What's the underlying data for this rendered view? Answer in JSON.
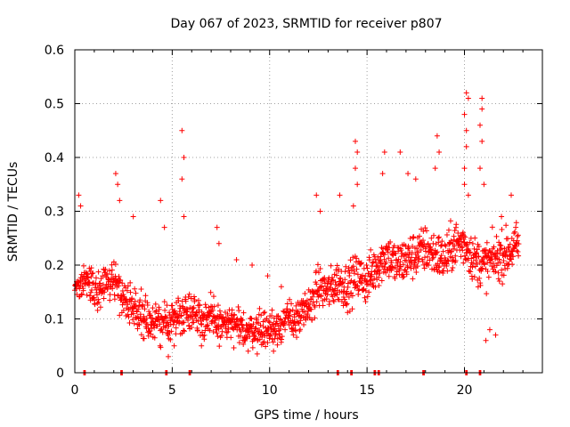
{
  "chart_data": {
    "type": "scatter",
    "title": "Day 067 of 2023, SRMTID for receiver p807",
    "xlabel": "GPS time / hours",
    "ylabel": "SRMTID / TECUs",
    "xlim": [
      0,
      24
    ],
    "ylim": [
      0,
      0.6
    ],
    "xticks": [
      0,
      5,
      10,
      15,
      20
    ],
    "yticks": [
      0,
      0.1,
      0.2,
      0.3,
      0.4,
      0.5,
      0.6
    ],
    "xtick_labels": [
      "0",
      "5",
      "10",
      "15",
      "20"
    ],
    "ytick_labels": [
      "0",
      "0.1",
      "0.2",
      "0.3",
      "0.4",
      "0.5",
      "0.6"
    ],
    "grid": true,
    "marker": "plus",
    "color": "#ff0000",
    "series": [
      {
        "name": "SRMTID",
        "trend": [
          [
            0.0,
            0.16
          ],
          [
            0.5,
            0.17
          ],
          [
            1.0,
            0.15
          ],
          [
            1.5,
            0.16
          ],
          [
            2.0,
            0.18
          ],
          [
            2.5,
            0.14
          ],
          [
            3.0,
            0.12
          ],
          [
            3.5,
            0.11
          ],
          [
            4.0,
            0.09
          ],
          [
            4.5,
            0.09
          ],
          [
            5.0,
            0.1
          ],
          [
            5.5,
            0.11
          ],
          [
            6.0,
            0.12
          ],
          [
            6.5,
            0.1
          ],
          [
            7.0,
            0.1
          ],
          [
            7.5,
            0.09
          ],
          [
            8.0,
            0.09
          ],
          [
            8.5,
            0.08
          ],
          [
            9.0,
            0.08
          ],
          [
            9.5,
            0.08
          ],
          [
            10.0,
            0.08
          ],
          [
            10.5,
            0.09
          ],
          [
            11.0,
            0.1
          ],
          [
            11.5,
            0.1
          ],
          [
            12.0,
            0.12
          ],
          [
            12.5,
            0.16
          ],
          [
            13.0,
            0.15
          ],
          [
            13.5,
            0.17
          ],
          [
            14.0,
            0.16
          ],
          [
            14.5,
            0.18
          ],
          [
            15.0,
            0.17
          ],
          [
            15.5,
            0.2
          ],
          [
            16.0,
            0.22
          ],
          [
            16.5,
            0.2
          ],
          [
            17.0,
            0.21
          ],
          [
            17.5,
            0.22
          ],
          [
            18.0,
            0.23
          ],
          [
            18.5,
            0.22
          ],
          [
            19.0,
            0.21
          ],
          [
            19.5,
            0.24
          ],
          [
            20.0,
            0.24
          ],
          [
            20.5,
            0.21
          ],
          [
            21.0,
            0.2
          ],
          [
            21.5,
            0.21
          ],
          [
            22.0,
            0.22
          ],
          [
            22.5,
            0.23
          ],
          [
            22.8,
            0.24
          ]
        ],
        "spread": [
          [
            0.0,
            0.05
          ],
          [
            3.0,
            0.06
          ],
          [
            6.0,
            0.06
          ],
          [
            9.0,
            0.05
          ],
          [
            12.0,
            0.06
          ],
          [
            15.0,
            0.07
          ],
          [
            18.0,
            0.07
          ],
          [
            21.0,
            0.07
          ],
          [
            22.8,
            0.07
          ]
        ],
        "outliers": [
          [
            0.2,
            0.33
          ],
          [
            0.3,
            0.31
          ],
          [
            2.1,
            0.37
          ],
          [
            2.2,
            0.35
          ],
          [
            2.3,
            0.32
          ],
          [
            3.0,
            0.29
          ],
          [
            4.4,
            0.32
          ],
          [
            4.6,
            0.27
          ],
          [
            5.5,
            0.45
          ],
          [
            5.6,
            0.4
          ],
          [
            5.5,
            0.36
          ],
          [
            5.6,
            0.29
          ],
          [
            7.3,
            0.27
          ],
          [
            7.4,
            0.24
          ],
          [
            8.3,
            0.21
          ],
          [
            9.1,
            0.2
          ],
          [
            9.9,
            0.18
          ],
          [
            10.6,
            0.16
          ],
          [
            12.4,
            0.33
          ],
          [
            12.6,
            0.3
          ],
          [
            13.6,
            0.33
          ],
          [
            14.4,
            0.43
          ],
          [
            14.5,
            0.41
          ],
          [
            14.4,
            0.38
          ],
          [
            14.5,
            0.35
          ],
          [
            14.3,
            0.31
          ],
          [
            15.9,
            0.41
          ],
          [
            15.8,
            0.37
          ],
          [
            16.7,
            0.41
          ],
          [
            17.1,
            0.37
          ],
          [
            17.5,
            0.36
          ],
          [
            18.6,
            0.44
          ],
          [
            18.7,
            0.41
          ],
          [
            18.5,
            0.38
          ],
          [
            20.1,
            0.52
          ],
          [
            20.2,
            0.51
          ],
          [
            20.0,
            0.48
          ],
          [
            20.1,
            0.45
          ],
          [
            20.1,
            0.42
          ],
          [
            20.0,
            0.38
          ],
          [
            20.0,
            0.35
          ],
          [
            20.2,
            0.33
          ],
          [
            20.9,
            0.51
          ],
          [
            20.9,
            0.49
          ],
          [
            20.8,
            0.46
          ],
          [
            20.9,
            0.43
          ],
          [
            20.8,
            0.38
          ],
          [
            21.0,
            0.35
          ],
          [
            21.9,
            0.29
          ],
          [
            22.4,
            0.33
          ],
          [
            21.3,
            0.08
          ],
          [
            21.6,
            0.07
          ],
          [
            21.1,
            0.06
          ],
          [
            4.8,
            0.03
          ],
          [
            5.1,
            0.05
          ],
          [
            8.9,
            0.04
          ],
          [
            10.2,
            0.04
          ],
          [
            6.5,
            0.05
          ]
        ],
        "baseline_markers_x": [
          0.5,
          2.4,
          4.7,
          5.9,
          13.5,
          14.2,
          15.4,
          15.6,
          17.9,
          20.1,
          20.8
        ]
      }
    ]
  }
}
